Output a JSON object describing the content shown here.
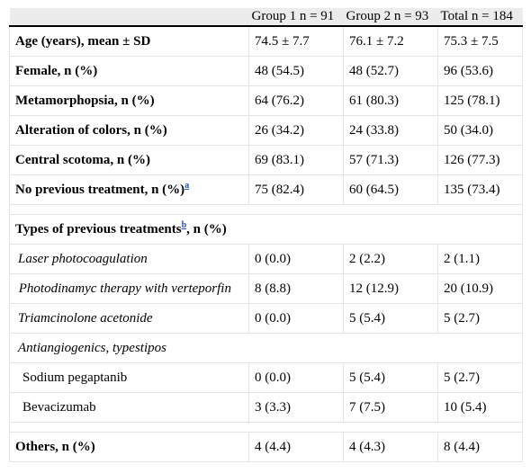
{
  "header": [
    "",
    "Group 1 n = 91",
    "Group 2 n = 93",
    "Total n = 184"
  ],
  "rows": [
    {
      "label": "Age (years), mean ± SD",
      "v": [
        "74.5 ± 7.7",
        "76.1 ± 7.2",
        "75.3 ± 7.5"
      ]
    },
    {
      "label": "Female, n (%)",
      "v": [
        "48 (54.5)",
        "48 (52.7)",
        "96 (53.6)"
      ]
    },
    {
      "label": "Metamorphopsia, n (%)",
      "v": [
        "64 (76.2)",
        "61 (80.3)",
        "125 (78.1)"
      ]
    },
    {
      "label": "Alteration of colors, n (%)",
      "v": [
        "26 (34.2)",
        "24 (33.8)",
        "50 (34.0)"
      ]
    },
    {
      "label": "Central scotoma, n (%)",
      "v": [
        "69 (83.1)",
        "57 (71.3)",
        "126 (77.3)"
      ]
    },
    {
      "label": "No previous treatment, n (%)",
      "sup": "a",
      "v": [
        "75 (82.4)",
        "60 (64.5)",
        "135 (73.4)"
      ]
    },
    {
      "label_pre": "Types of previous treatments",
      "sup": "b",
      "label_post": ", n (%)"
    },
    {
      "label": "Laser photocoagulation",
      "v": [
        "0 (0.0)",
        "2 (2.2)",
        "2 (1.1)"
      ]
    },
    {
      "label": "Photodinamyc therapy with verteporfin",
      "v": [
        "8 (8.8)",
        "12 (12.9)",
        "20 (10.9)"
      ]
    },
    {
      "label": "Triamcinolone acetonide",
      "v": [
        "0 (0.0)",
        "5 (5.4)",
        "5 (2.7)"
      ]
    },
    {
      "label": "Antiangiogenics, typestipos"
    },
    {
      "label": "Sodium pegaptanib",
      "v": [
        "0 (0.0)",
        "5 (5.4)",
        "5 (2.7)"
      ]
    },
    {
      "label": "Bevacizumab",
      "v": [
        "3 (3.3)",
        "7 (7.5)",
        "10 (5.4)"
      ]
    },
    {
      "label": "Others, n (%)",
      "v": [
        "4 (4.4)",
        "4 (4.3)",
        "8 (4.4)"
      ]
    }
  ]
}
